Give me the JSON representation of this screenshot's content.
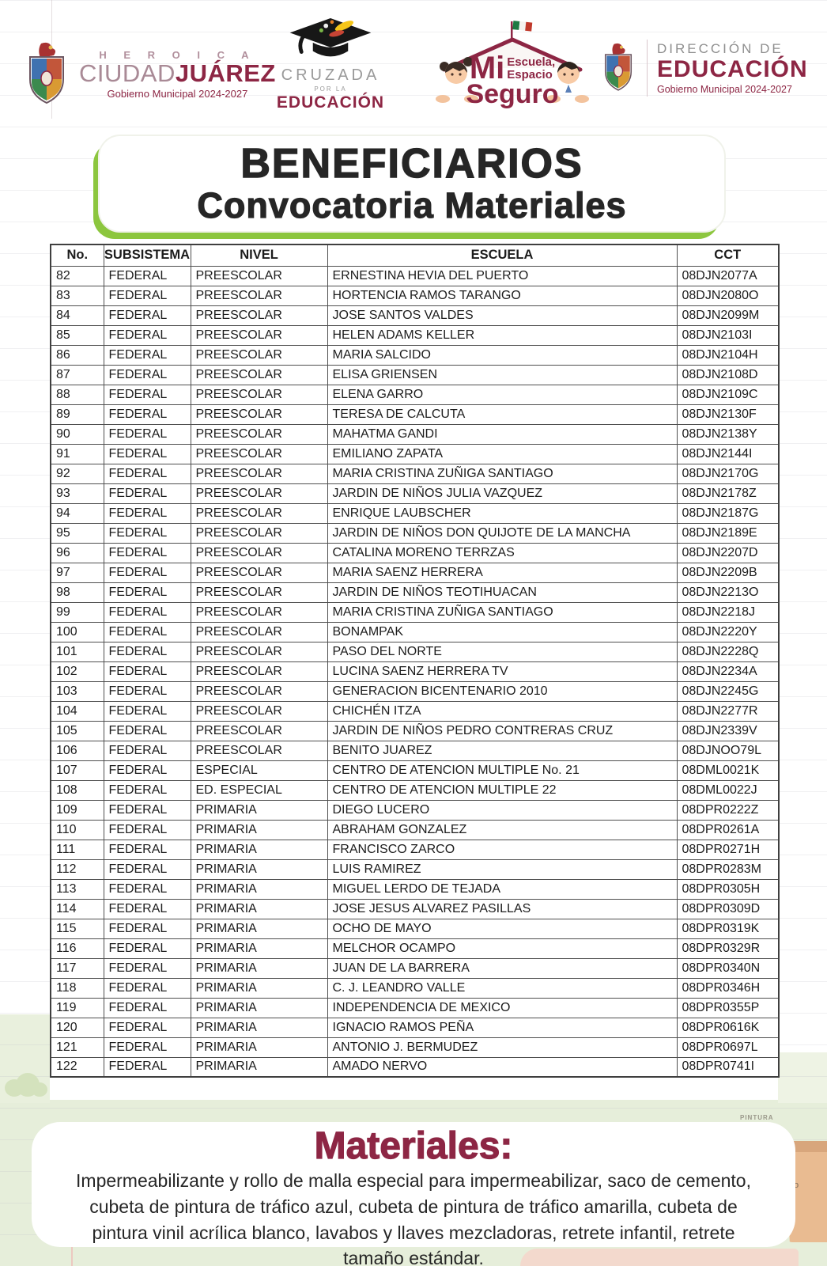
{
  "header": {
    "logo_juarez": {
      "heroica": "H E R O I C A",
      "ciudad": "CIUDAD",
      "juarez": "JUÁREZ",
      "gobierno": "Gobierno Municipal 2024-2027"
    },
    "logo_cruzada": {
      "line1": "CRUZADA",
      "line2": "POR LA",
      "line3": "EDUCACIÓN"
    },
    "logo_escuela": {
      "mi": "Mi",
      "escuela": "Escuela,",
      "espacio": "Espacio",
      "seguro": "Seguro"
    },
    "logo_direccion": {
      "line1": "DIRECCIÓN DE",
      "line2": "EDUCACIÓN",
      "line3": "Gobierno Municipal 2024-2027"
    }
  },
  "title": {
    "line1": "BENEFICIARIOS",
    "line2": "Convocatoria Materiales"
  },
  "table": {
    "columns": [
      "No.",
      "SUBSISTEMA",
      "NIVEL",
      "ESCUELA",
      "CCT"
    ],
    "rows": [
      [
        "82",
        "FEDERAL",
        "PREESCOLAR",
        "ERNESTINA HEVIA DEL PUERTO",
        "08DJN2077A"
      ],
      [
        "83",
        "FEDERAL",
        "PREESCOLAR",
        "HORTENCIA RAMOS TARANGO",
        "08DJN2080O"
      ],
      [
        "84",
        "FEDERAL",
        "PREESCOLAR",
        "JOSE SANTOS VALDES",
        "08DJN2099M"
      ],
      [
        "85",
        "FEDERAL",
        "PREESCOLAR",
        "HELEN ADAMS KELLER",
        "08DJN2103I"
      ],
      [
        "86",
        "FEDERAL",
        "PREESCOLAR",
        "MARIA SALCIDO",
        "08DJN2104H"
      ],
      [
        "87",
        "FEDERAL",
        "PREESCOLAR",
        "ELISA GRIENSEN",
        "08DJN2108D"
      ],
      [
        "88",
        "FEDERAL",
        "PREESCOLAR",
        "ELENA GARRO",
        "08DJN2109C"
      ],
      [
        "89",
        "FEDERAL",
        "PREESCOLAR",
        "TERESA DE CALCUTA",
        "08DJN2130F"
      ],
      [
        "90",
        "FEDERAL",
        "PREESCOLAR",
        "MAHATMA GANDI",
        "08DJN2138Y"
      ],
      [
        "91",
        "FEDERAL",
        "PREESCOLAR",
        "EMILIANO ZAPATA",
        "08DJN2144I"
      ],
      [
        "92",
        "FEDERAL",
        "PREESCOLAR",
        "MARIA CRISTINA ZUÑIGA SANTIAGO",
        "08DJN2170G"
      ],
      [
        "93",
        "FEDERAL",
        "PREESCOLAR",
        "JARDIN DE NIÑOS JULIA VAZQUEZ",
        "08DJN2178Z"
      ],
      [
        "94",
        "FEDERAL",
        "PREESCOLAR",
        "ENRIQUE LAUBSCHER",
        "08DJN2187G"
      ],
      [
        "95",
        "FEDERAL",
        "PREESCOLAR",
        "JARDIN DE NIÑOS DON QUIJOTE DE LA MANCHA",
        "08DJN2189E"
      ],
      [
        "96",
        "FEDERAL",
        "PREESCOLAR",
        "CATALINA MORENO TERRZAS",
        "08DJN2207D"
      ],
      [
        "97",
        "FEDERAL",
        "PREESCOLAR",
        "MARIA SAENZ HERRERA",
        "08DJN2209B"
      ],
      [
        "98",
        "FEDERAL",
        "PREESCOLAR",
        "JARDIN DE NIÑOS TEOTIHUACAN",
        "08DJN2213O"
      ],
      [
        "99",
        "FEDERAL",
        "PREESCOLAR",
        "MARIA CRISTINA ZUÑIGA SANTIAGO",
        "08DJN2218J"
      ],
      [
        "100",
        "FEDERAL",
        "PREESCOLAR",
        "BONAMPAK",
        "08DJN2220Y"
      ],
      [
        "101",
        "FEDERAL",
        "PREESCOLAR",
        "PASO DEL NORTE",
        "08DJN2228Q"
      ],
      [
        "102",
        "FEDERAL",
        "PREESCOLAR",
        "LUCINA SAENZ HERRERA TV",
        "08DJN2234A"
      ],
      [
        "103",
        "FEDERAL",
        "PREESCOLAR",
        "GENERACION BICENTENARIO 2010",
        "08DJN2245G"
      ],
      [
        "104",
        "FEDERAL",
        "PREESCOLAR",
        "CHICHÉN ITZA",
        "08DJN2277R"
      ],
      [
        "105",
        "FEDERAL",
        "PREESCOLAR",
        "JARDIN DE NIÑOS PEDRO CONTRERAS CRUZ",
        "08DJN2339V"
      ],
      [
        "106",
        "FEDERAL",
        "PREESCOLAR",
        "BENITO JUAREZ",
        "08DJNOO79L"
      ],
      [
        "107",
        "FEDERAL",
        "ESPECIAL",
        "CENTRO DE ATENCION MULTIPLE No. 21",
        "08DML0021K"
      ],
      [
        "108",
        "FEDERAL",
        "ED. ESPECIAL",
        "CENTRO DE ATENCION MULTIPLE 22",
        "08DML0022J"
      ],
      [
        "109",
        "FEDERAL",
        "PRIMARIA",
        "DIEGO LUCERO",
        "08DPR0222Z"
      ],
      [
        "110",
        "FEDERAL",
        "PRIMARIA",
        "ABRAHAM GONZALEZ",
        "08DPR0261A"
      ],
      [
        "111",
        "FEDERAL",
        "PRIMARIA",
        "FRANCISCO ZARCO",
        "08DPR0271H"
      ],
      [
        "112",
        "FEDERAL",
        "PRIMARIA",
        "LUIS RAMIREZ",
        "08DPR0283M"
      ],
      [
        "113",
        "FEDERAL",
        "PRIMARIA",
        "MIGUEL LERDO DE TEJADA",
        "08DPR0305H"
      ],
      [
        "114",
        "FEDERAL",
        "PRIMARIA",
        "JOSE JESUS ALVAREZ PASILLAS",
        "08DPR0309D"
      ],
      [
        "115",
        "FEDERAL",
        "PRIMARIA",
        "OCHO DE MAYO",
        "08DPR0319K"
      ],
      [
        "116",
        "FEDERAL",
        "PRIMARIA",
        "MELCHOR OCAMPO",
        "08DPR0329R"
      ],
      [
        "117",
        "FEDERAL",
        "PRIMARIA",
        "JUAN DE LA BARRERA",
        "08DPR0340N"
      ],
      [
        "118",
        "FEDERAL",
        "PRIMARIA",
        "C. J. LEANDRO VALLE",
        "08DPR0346H"
      ],
      [
        "119",
        "FEDERAL",
        "PRIMARIA",
        "INDEPENDENCIA DE MEXICO",
        "08DPR0355P"
      ],
      [
        "120",
        "FEDERAL",
        "PRIMARIA",
        "IGNACIO RAMOS PEÑA",
        "08DPR0616K"
      ],
      [
        "121",
        "FEDERAL",
        "PRIMARIA",
        "ANTONIO J. BERMUDEZ",
        "08DPR0697L"
      ],
      [
        "122",
        "FEDERAL",
        "PRIMARIA",
        "AMADO NERVO",
        "08DPR0741I"
      ]
    ]
  },
  "materials": {
    "title": "Materiales:",
    "body": "Impermeabilizante y rollo de malla especial para impermeabilizar, saco de cemento, cubeta de pintura de tráfico azul, cubeta de pintura de tráfico amarilla, cubeta de pintura vinil acrílica blanco, lavabos y llaves mezcladoras, retrete infantil, retrete tamaño estándar."
  },
  "decor": {
    "bucket_label": "PINTURA"
  },
  "colors": {
    "maroon": "#8d2644",
    "green_accent": "#8cc63e",
    "bg_green": "#e6eeda"
  }
}
